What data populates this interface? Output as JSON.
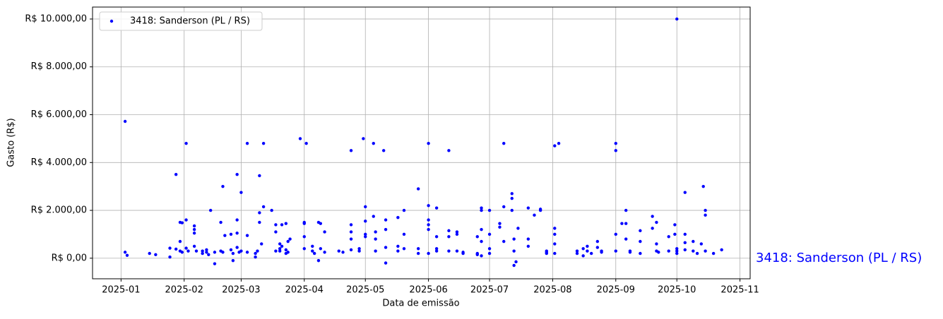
{
  "chart_data": {
    "type": "scatter",
    "xlabel": "Data de emissão",
    "ylabel": "Gasto (R$)",
    "annotation": "3418: Sanderson (PL / RS)",
    "legend": "upper left",
    "grid": true,
    "xlim": [
      "2024-12-18",
      "2025-11-06"
    ],
    "xticks": [
      {
        "value": "2025-01-01",
        "label": "2025-01"
      },
      {
        "value": "2025-02-01",
        "label": "2025-02"
      },
      {
        "value": "2025-03-01",
        "label": "2025-03"
      },
      {
        "value": "2025-04-01",
        "label": "2025-04"
      },
      {
        "value": "2025-05-01",
        "label": "2025-05"
      },
      {
        "value": "2025-06-01",
        "label": "2025-06"
      },
      {
        "value": "2025-07-01",
        "label": "2025-07"
      },
      {
        "value": "2025-08-01",
        "label": "2025-08"
      },
      {
        "value": "2025-09-01",
        "label": "2025-09"
      },
      {
        "value": "2025-10-01",
        "label": "2025-10"
      },
      {
        "value": "2025-11-01",
        "label": "2025-11"
      }
    ],
    "ylim": [
      -860,
      10500
    ],
    "yticks": [
      {
        "value": 0,
        "label": "R$ 0,00"
      },
      {
        "value": 2000,
        "label": "R$ 2.000,00"
      },
      {
        "value": 4000,
        "label": "R$ 4.000,00"
      },
      {
        "value": 6000,
        "label": "R$ 6.000,00"
      },
      {
        "value": 8000,
        "label": "R$ 8.000,00"
      },
      {
        "value": 10000,
        "label": "R$ 10.000,00"
      }
    ],
    "series": [
      {
        "name": "3418: Sanderson (PL / RS)",
        "color": "#0000ff",
        "x": [
          "2025-01-03",
          "2025-01-03",
          "2025-01-04",
          "2025-01-15",
          "2025-01-18",
          "2025-01-25",
          "2025-01-25",
          "2025-01-28",
          "2025-01-28",
          "2025-01-30",
          "2025-01-30",
          "2025-01-30",
          "2025-01-31",
          "2025-01-31",
          "2025-02-02",
          "2025-02-02",
          "2025-02-02",
          "2025-02-03",
          "2025-02-06",
          "2025-02-06",
          "2025-02-06",
          "2025-02-06",
          "2025-02-07",
          "2025-02-10",
          "2025-02-10",
          "2025-02-12",
          "2025-02-12",
          "2025-02-13",
          "2025-02-14",
          "2025-02-16",
          "2025-02-16",
          "2025-02-19",
          "2025-02-19",
          "2025-02-20",
          "2025-02-20",
          "2025-02-21",
          "2025-02-24",
          "2025-02-24",
          "2025-02-25",
          "2025-02-25",
          "2025-02-27",
          "2025-02-27",
          "2025-02-27",
          "2025-02-27",
          "2025-02-28",
          "2025-03-01",
          "2025-03-01",
          "2025-03-04",
          "2025-03-04",
          "2025-03-04",
          "2025-03-08",
          "2025-03-08",
          "2025-03-09",
          "2025-03-10",
          "2025-03-10",
          "2025-03-10",
          "2025-03-11",
          "2025-03-12",
          "2025-03-12",
          "2025-03-16",
          "2025-03-18",
          "2025-03-18",
          "2025-03-18",
          "2025-03-20",
          "2025-03-20",
          "2025-03-20",
          "2025-03-21",
          "2025-03-21",
          "2025-03-23",
          "2025-03-23",
          "2025-03-23",
          "2025-03-24",
          "2025-03-24",
          "2025-03-25",
          "2025-03-30",
          "2025-04-01",
          "2025-04-01",
          "2025-04-01",
          "2025-04-01",
          "2025-04-02",
          "2025-04-05",
          "2025-04-05",
          "2025-04-06",
          "2025-04-08",
          "2025-04-08",
          "2025-04-09",
          "2025-04-09",
          "2025-04-11",
          "2025-04-11",
          "2025-04-18",
          "2025-04-20",
          "2025-04-24",
          "2025-04-24",
          "2025-04-24",
          "2025-04-24",
          "2025-04-24",
          "2025-04-28",
          "2025-04-28",
          "2025-04-30",
          "2025-05-01",
          "2025-05-01",
          "2025-05-01",
          "2025-05-01",
          "2025-05-05",
          "2025-05-05",
          "2025-05-06",
          "2025-05-06",
          "2025-05-06",
          "2025-05-10",
          "2025-05-11",
          "2025-05-11",
          "2025-05-11",
          "2025-05-11",
          "2025-05-17",
          "2025-05-17",
          "2025-05-17",
          "2025-05-20",
          "2025-05-20",
          "2025-05-20",
          "2025-05-27",
          "2025-05-27",
          "2025-05-27",
          "2025-06-01",
          "2025-06-01",
          "2025-06-01",
          "2025-06-01",
          "2025-06-01",
          "2025-06-01",
          "2025-06-05",
          "2025-06-05",
          "2025-06-05",
          "2025-06-05",
          "2025-06-11",
          "2025-06-11",
          "2025-06-11",
          "2025-06-11",
          "2025-06-15",
          "2025-06-15",
          "2025-06-15",
          "2025-06-18",
          "2025-06-18",
          "2025-06-25",
          "2025-06-25",
          "2025-06-25",
          "2025-06-27",
          "2025-06-27",
          "2025-06-27",
          "2025-06-27",
          "2025-06-27",
          "2025-07-01",
          "2025-07-01",
          "2025-07-01",
          "2025-07-01",
          "2025-07-06",
          "2025-07-06",
          "2025-07-08",
          "2025-07-08",
          "2025-07-08",
          "2025-07-12",
          "2025-07-12",
          "2025-07-12",
          "2025-07-13",
          "2025-07-13",
          "2025-07-13",
          "2025-07-14",
          "2025-07-15",
          "2025-07-20",
          "2025-07-20",
          "2025-07-20",
          "2025-07-23",
          "2025-07-26",
          "2025-07-26",
          "2025-07-29",
          "2025-07-29",
          "2025-07-29",
          "2025-08-02",
          "2025-08-02",
          "2025-08-02",
          "2025-08-02",
          "2025-08-02",
          "2025-08-04",
          "2025-08-13",
          "2025-08-13",
          "2025-08-16",
          "2025-08-16",
          "2025-08-18",
          "2025-08-18",
          "2025-08-20",
          "2025-08-23",
          "2025-08-23",
          "2025-08-25",
          "2025-08-25",
          "2025-09-01",
          "2025-09-01",
          "2025-09-01",
          "2025-09-01",
          "2025-09-04",
          "2025-09-06",
          "2025-09-06",
          "2025-09-06",
          "2025-09-08",
          "2025-09-08",
          "2025-09-13",
          "2025-09-13",
          "2025-09-13",
          "2025-09-19",
          "2025-09-19",
          "2025-09-21",
          "2025-09-21",
          "2025-09-21",
          "2025-09-22",
          "2025-09-27",
          "2025-09-27",
          "2025-09-30",
          "2025-09-30",
          "2025-10-01",
          "2025-10-01",
          "2025-10-01",
          "2025-10-01",
          "2025-10-05",
          "2025-10-05",
          "2025-10-05",
          "2025-10-05",
          "2025-10-09",
          "2025-10-09",
          "2025-10-11",
          "2025-10-13",
          "2025-10-14",
          "2025-10-15",
          "2025-10-15",
          "2025-10-15",
          "2025-10-19",
          "2025-10-23"
        ],
        "values": [
          5720,
          250,
          120,
          200,
          150,
          420,
          50,
          3500,
          380,
          700,
          1500,
          300,
          1480,
          250,
          4800,
          1600,
          420,
          300,
          1350,
          1200,
          1050,
          500,
          300,
          300,
          200,
          250,
          350,
          150,
          2000,
          -230,
          250,
          1500,
          300,
          3000,
          250,
          950,
          1000,
          350,
          200,
          -100,
          3500,
          1600,
          1050,
          450,
          250,
          2750,
          300,
          4800,
          950,
          250,
          200,
          50,
          300,
          3450,
          1900,
          1500,
          600,
          4800,
          2150,
          2000,
          1400,
          1100,
          300,
          600,
          400,
          300,
          500,
          1400,
          1450,
          200,
          350,
          250,
          700,
          800,
          5000,
          1500,
          1450,
          900,
          400,
          4800,
          500,
          300,
          200,
          -100,
          1500,
          1450,
          400,
          1100,
          250,
          300,
          250,
          4500,
          1400,
          1100,
          800,
          350,
          400,
          300,
          5000,
          2150,
          1550,
          1000,
          900,
          4800,
          1750,
          1100,
          800,
          300,
          4500,
          -200,
          1600,
          1200,
          450,
          1700,
          500,
          300,
          2000,
          1000,
          400,
          2900,
          400,
          200,
          4800,
          2200,
          1600,
          1400,
          1200,
          200,
          2100,
          900,
          400,
          300,
          4500,
          1150,
          900,
          300,
          1100,
          1000,
          300,
          250,
          200,
          200,
          150,
          900,
          2100,
          2000,
          1200,
          700,
          100,
          1000,
          2000,
          400,
          200,
          1450,
          1300,
          4800,
          2150,
          700,
          2700,
          2500,
          2000,
          800,
          300,
          -300,
          -150,
          1250,
          2100,
          800,
          500,
          1800,
          2000,
          2050,
          300,
          200,
          250,
          4700,
          1250,
          1000,
          600,
          200,
          4800,
          300,
          200,
          400,
          100,
          300,
          500,
          200,
          700,
          450,
          300,
          250,
          4500,
          4800,
          1000,
          300,
          1450,
          1450,
          2000,
          800,
          300,
          250,
          1150,
          700,
          200,
          1250,
          1750,
          1500,
          300,
          600,
          250,
          900,
          300,
          1400,
          1000,
          10000,
          400,
          300,
          200,
          2750,
          1000,
          650,
          350,
          700,
          300,
          200,
          600,
          3000,
          1800,
          2000,
          300,
          200,
          350
        ]
      }
    ]
  }
}
